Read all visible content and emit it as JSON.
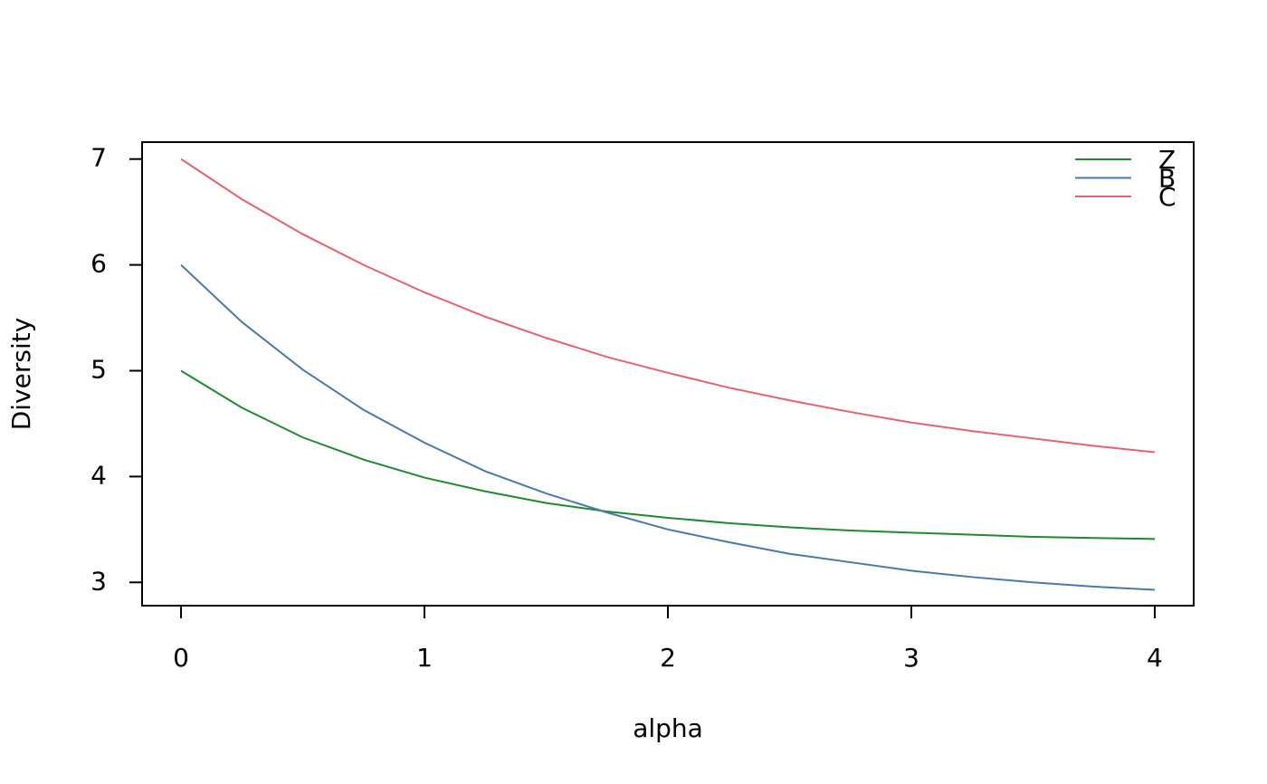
{
  "chart_data": {
    "type": "line",
    "x_label": "alpha",
    "y_label": "Diversity",
    "x": [
      0,
      0.25,
      0.5,
      0.75,
      1,
      1.25,
      1.5,
      1.75,
      2,
      2.25,
      2.5,
      2.75,
      3,
      3.25,
      3.5,
      3.75,
      4
    ],
    "series": [
      {
        "name": "Z",
        "color": "#1f8a2f",
        "values": [
          5.0,
          4.65,
          4.37,
          4.16,
          3.99,
          3.86,
          3.75,
          3.67,
          3.61,
          3.56,
          3.52,
          3.49,
          3.47,
          3.45,
          3.43,
          3.42,
          3.41
        ]
      },
      {
        "name": "B",
        "color": "#4a79a8",
        "values": [
          6.0,
          5.46,
          5.01,
          4.63,
          4.32,
          4.05,
          3.84,
          3.66,
          3.5,
          3.38,
          3.27,
          3.19,
          3.11,
          3.05,
          3.0,
          2.96,
          2.93
        ]
      },
      {
        "name": "C",
        "color": "#e5636f",
        "values": [
          7.0,
          6.62,
          6.29,
          6.0,
          5.74,
          5.51,
          5.31,
          5.13,
          4.98,
          4.84,
          4.72,
          4.61,
          4.51,
          4.43,
          4.36,
          4.29,
          4.23
        ]
      }
    ],
    "xlim": [
      -0.16,
      4.16
    ],
    "xticks": [
      0,
      1,
      2,
      3,
      4
    ],
    "ylim": [
      2.78,
      7.16
    ],
    "yticks": [
      3,
      4,
      5,
      6,
      7
    ],
    "legend": "top-right"
  }
}
